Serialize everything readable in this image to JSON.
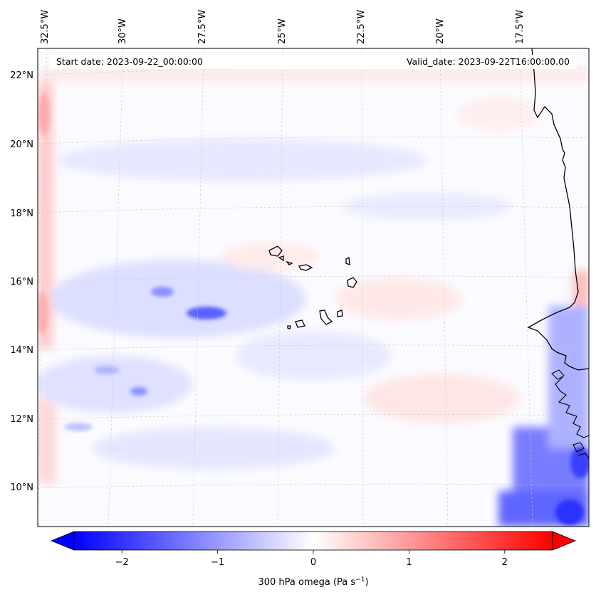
{
  "map": {
    "start_date_label": "Start date: 2023-09-22_00:00:00",
    "valid_date_label": "Valid_date: 2023-09-22T16:00:00.00",
    "lon_labels": [
      "32.5°W",
      "30°W",
      "27.5°W",
      "25°W",
      "22.5°W",
      "20°W",
      "17.5°W"
    ],
    "lat_labels": [
      "22°N",
      "20°N",
      "18°N",
      "16°N",
      "14°N",
      "12°N",
      "10°N"
    ],
    "field": "300 hPa omega",
    "region": "Cabo Verde islands and West African coast"
  },
  "colorbar": {
    "label": "300 hPa omega (Pa s",
    "label_sup": "−1",
    "label_close": ")",
    "ticks": [
      "−2",
      "−1",
      "0",
      "1",
      "2"
    ],
    "tick_values": [
      -2,
      -1,
      0,
      1,
      2
    ],
    "range": [
      -2.5,
      2.5
    ],
    "colormap": "bwr",
    "low_color": "#0000ff",
    "mid_color": "#ffffff",
    "high_color": "#ff0000"
  }
}
